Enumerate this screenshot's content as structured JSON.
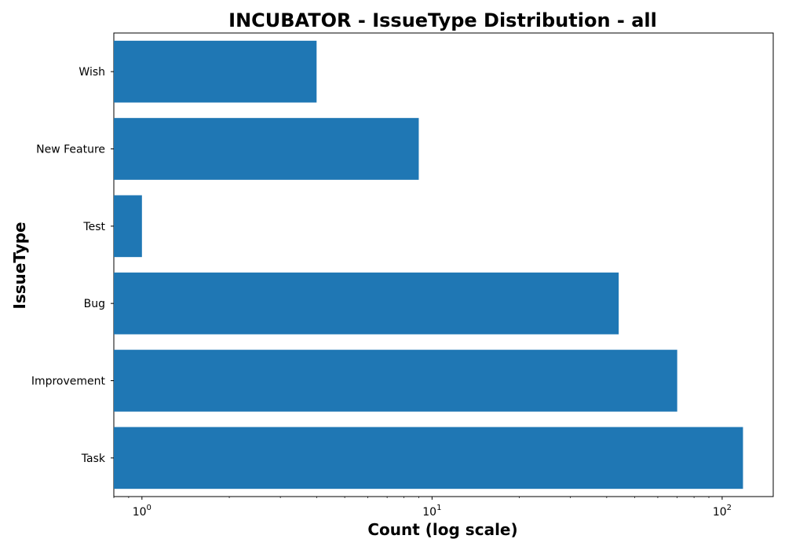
{
  "chart_data": {
    "type": "bar",
    "orientation": "horizontal",
    "title": "INCUBATOR - IssueType Distribution - all",
    "xlabel": "Count (log scale)",
    "ylabel": "IssueType",
    "x_scale": "log",
    "xlim": [
      0.8,
      150
    ],
    "x_ticks": [
      1,
      10,
      100
    ],
    "categories": [
      "Task",
      "Improvement",
      "Bug",
      "Test",
      "New Feature",
      "Wish"
    ],
    "values": [
      118,
      70,
      44,
      1,
      9,
      4
    ],
    "bar_color": "#1f77b4",
    "grid": false,
    "legend": "none"
  }
}
